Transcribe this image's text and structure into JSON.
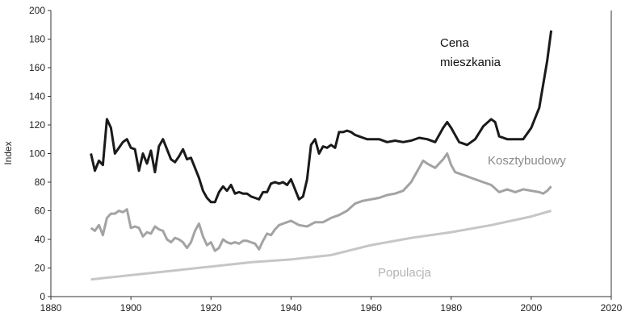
{
  "chart_data": {
    "type": "line",
    "y_label": "Index",
    "xlim": [
      1880,
      2020
    ],
    "xticks": [
      1880,
      1900,
      1920,
      1940,
      1960,
      1980,
      2000,
      2020
    ],
    "ylim": [
      0,
      200
    ],
    "yticks": [
      0,
      20,
      40,
      60,
      80,
      100,
      120,
      140,
      160,
      180,
      200
    ],
    "grid": false,
    "series": [
      {
        "name": "Cena mieszkania",
        "color": "#1a1a1a",
        "x": [
          1890,
          1891,
          1892,
          1893,
          1894,
          1895,
          1896,
          1897,
          1898,
          1899,
          1900,
          1901,
          1902,
          1903,
          1904,
          1905,
          1906,
          1907,
          1908,
          1909,
          1910,
          1911,
          1912,
          1913,
          1914,
          1915,
          1916,
          1917,
          1918,
          1919,
          1920,
          1921,
          1922,
          1923,
          1924,
          1925,
          1926,
          1927,
          1928,
          1929,
          1930,
          1931,
          1932,
          1933,
          1934,
          1935,
          1936,
          1937,
          1938,
          1939,
          1940,
          1941,
          1942,
          1943,
          1944,
          1945,
          1946,
          1947,
          1948,
          1949,
          1950,
          1951,
          1952,
          1953,
          1954,
          1955,
          1956,
          1957,
          1958,
          1959,
          1960,
          1962,
          1964,
          1966,
          1968,
          1970,
          1972,
          1974,
          1976,
          1978,
          1979,
          1980,
          1982,
          1984,
          1986,
          1988,
          1990,
          1991,
          1992,
          1994,
          1996,
          1998,
          2000,
          2002,
          2004,
          2005
        ],
        "values": [
          100,
          88,
          95,
          92,
          124,
          118,
          100,
          104,
          108,
          110,
          104,
          103,
          88,
          100,
          93,
          102,
          87,
          105,
          110,
          103,
          96,
          94,
          98,
          103,
          96,
          97,
          90,
          83,
          74,
          69,
          66,
          66,
          73,
          77,
          74,
          78,
          72,
          73,
          72,
          72,
          70,
          69,
          68,
          73,
          73,
          79,
          80,
          79,
          80,
          78,
          82,
          75,
          68,
          70,
          82,
          106,
          110,
          100,
          105,
          104,
          106,
          104,
          115,
          115,
          116,
          115,
          113,
          112,
          111,
          110,
          110,
          110,
          108,
          109,
          108,
          109,
          111,
          110,
          108,
          118,
          122,
          118,
          108,
          106,
          110,
          119,
          124,
          122,
          112,
          110,
          110,
          110,
          118,
          132,
          165,
          186
        ]
      },
      {
        "name": "Kosztybudowy",
        "color": "#a3a3a3",
        "x": [
          1890,
          1891,
          1892,
          1893,
          1894,
          1895,
          1896,
          1897,
          1898,
          1899,
          1900,
          1901,
          1902,
          1903,
          1904,
          1905,
          1906,
          1907,
          1908,
          1909,
          1910,
          1911,
          1912,
          1913,
          1914,
          1915,
          1916,
          1917,
          1918,
          1919,
          1920,
          1921,
          1922,
          1923,
          1924,
          1925,
          1926,
          1927,
          1928,
          1929,
          1930,
          1931,
          1932,
          1933,
          1934,
          1935,
          1936,
          1937,
          1938,
          1939,
          1940,
          1942,
          1944,
          1946,
          1948,
          1950,
          1952,
          1954,
          1956,
          1958,
          1960,
          1962,
          1964,
          1966,
          1968,
          1970,
          1972,
          1973,
          1974,
          1976,
          1978,
          1979,
          1980,
          1981,
          1982,
          1984,
          1986,
          1988,
          1990,
          1992,
          1994,
          1996,
          1998,
          2000,
          2002,
          2003,
          2004,
          2005
        ],
        "values": [
          48,
          46,
          50,
          43,
          55,
          58,
          58,
          60,
          59,
          61,
          48,
          49,
          48,
          42,
          45,
          44,
          49,
          47,
          46,
          40,
          38,
          41,
          40,
          38,
          34,
          38,
          46,
          51,
          42,
          36,
          38,
          32,
          34,
          40,
          38,
          37,
          38,
          37,
          39,
          39,
          38,
          37,
          33,
          39,
          44,
          43,
          47,
          50,
          51,
          52,
          53,
          50,
          49,
          52,
          52,
          55,
          57,
          60,
          65,
          67,
          68,
          69,
          71,
          72,
          74,
          80,
          90,
          95,
          93,
          90,
          96,
          100,
          92,
          87,
          86,
          84,
          82,
          80,
          78,
          73,
          75,
          73,
          75,
          74,
          73,
          72,
          74,
          77
        ]
      },
      {
        "name": "Populacja",
        "color": "#c6c6c6",
        "x": [
          1890,
          1900,
          1910,
          1920,
          1930,
          1940,
          1950,
          1960,
          1970,
          1980,
          1990,
          2000,
          2005
        ],
        "values": [
          12,
          15,
          18,
          21,
          24,
          26,
          29,
          36,
          41,
          45,
          50,
          56,
          60
        ]
      }
    ]
  }
}
